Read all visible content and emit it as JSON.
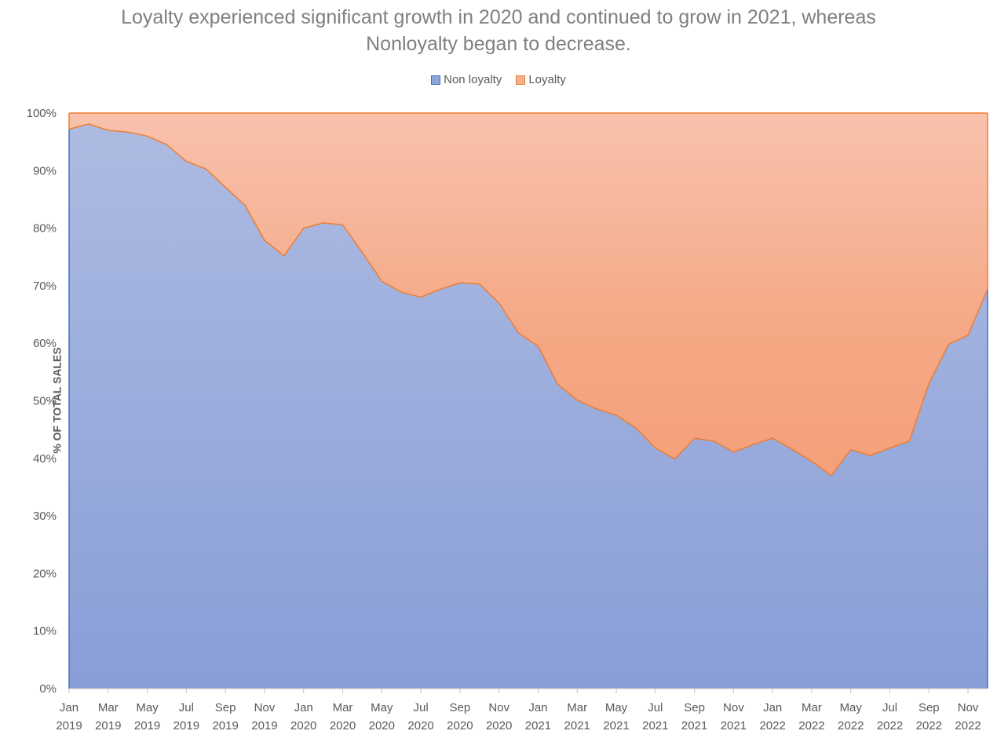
{
  "chart_data": {
    "type": "area",
    "stacked": true,
    "percent": true,
    "title": "Loyalty experienced significant growth in 2020 and continued to grow in 2021, whereas Nonloyalty began to decrease.",
    "title_lines": [
      "Loyalty experienced significant growth in 2020 and continued to grow in 2021, whereas",
      "Nonloyalty began to decrease."
    ],
    "xlabel": "",
    "ylabel": "% OF TOTAL SALES",
    "ylim": [
      0,
      100
    ],
    "yticks": [
      "0%",
      "10%",
      "20%",
      "30%",
      "40%",
      "50%",
      "60%",
      "70%",
      "80%",
      "90%",
      "100%"
    ],
    "xtick_labels": [
      [
        "Jan",
        "2019"
      ],
      [
        "Mar",
        "2019"
      ],
      [
        "May",
        "2019"
      ],
      [
        "Jul",
        "2019"
      ],
      [
        "Sep",
        "2019"
      ],
      [
        "Nov",
        "2019"
      ],
      [
        "Jan",
        "2020"
      ],
      [
        "Mar",
        "2020"
      ],
      [
        "May",
        "2020"
      ],
      [
        "Jul",
        "2020"
      ],
      [
        "Sep",
        "2020"
      ],
      [
        "Nov",
        "2020"
      ],
      [
        "Jan",
        "2021"
      ],
      [
        "Mar",
        "2021"
      ],
      [
        "May",
        "2021"
      ],
      [
        "Jul",
        "2021"
      ],
      [
        "Sep",
        "2021"
      ],
      [
        "Nov",
        "2021"
      ],
      [
        "Jan",
        "2022"
      ],
      [
        "Mar",
        "2022"
      ],
      [
        "May",
        "2022"
      ],
      [
        "Jul",
        "2022"
      ],
      [
        "Sep",
        "2022"
      ],
      [
        "Nov",
        "2022"
      ]
    ],
    "x": [
      "2019-01",
      "2019-02",
      "2019-03",
      "2019-04",
      "2019-05",
      "2019-06",
      "2019-07",
      "2019-08",
      "2019-09",
      "2019-10",
      "2019-11",
      "2019-12",
      "2020-01",
      "2020-02",
      "2020-03",
      "2020-04",
      "2020-05",
      "2020-06",
      "2020-07",
      "2020-08",
      "2020-09",
      "2020-10",
      "2020-11",
      "2020-12",
      "2021-01",
      "2021-02",
      "2021-03",
      "2021-04",
      "2021-05",
      "2021-06",
      "2021-07",
      "2021-08",
      "2021-09",
      "2021-10",
      "2021-11",
      "2021-12",
      "2022-01",
      "2022-02",
      "2022-03",
      "2022-04",
      "2022-05",
      "2022-06",
      "2022-07",
      "2022-08",
      "2022-09",
      "2022-10",
      "2022-11",
      "2022-12"
    ],
    "series": [
      {
        "name": "Non loyalty",
        "color": "#4472c4",
        "values": [
          97.2,
          98.1,
          97.0,
          96.7,
          96.0,
          94.5,
          91.6,
          90.3,
          87.1,
          84.0,
          77.9,
          75.2,
          80.0,
          80.9,
          80.6,
          75.8,
          70.8,
          68.9,
          68.0,
          69.4,
          70.5,
          70.3,
          67.0,
          61.8,
          59.5,
          52.9,
          50.1,
          48.6,
          47.5,
          45.3,
          41.8,
          39.9,
          43.5,
          43.0,
          41.1,
          42.4,
          43.5,
          41.6,
          39.5,
          37.0,
          41.5,
          40.5,
          41.8,
          43.0,
          53.0,
          59.8,
          61.4,
          69.4
        ]
      },
      {
        "name": "Loyalty",
        "color": "#ed7d31",
        "values": [
          2.8,
          1.9,
          3.0,
          3.3,
          4.0,
          5.5,
          8.4,
          9.7,
          12.9,
          16.0,
          22.1,
          24.8,
          20.0,
          19.1,
          19.4,
          24.2,
          29.2,
          31.1,
          32.0,
          30.6,
          29.5,
          29.7,
          33.0,
          38.2,
          40.5,
          47.1,
          49.9,
          51.4,
          52.5,
          54.7,
          58.2,
          60.1,
          56.5,
          57.0,
          58.9,
          57.6,
          56.5,
          58.4,
          60.5,
          63.0,
          58.5,
          59.5,
          58.2,
          57.0,
          47.0,
          40.2,
          38.6,
          30.6
        ]
      }
    ],
    "legend_position": "top",
    "grid": false
  }
}
